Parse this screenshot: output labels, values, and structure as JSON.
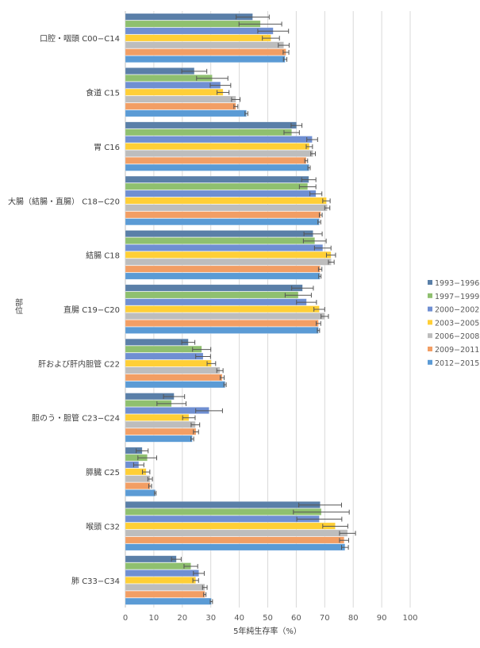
{
  "chart_data": {
    "type": "bar",
    "orientation": "horizontal",
    "xlabel": "5年純生存率（%）",
    "ylabel": "部位",
    "xlim": [
      0,
      100
    ],
    "xticks": [
      0,
      10,
      20,
      30,
      40,
      50,
      60,
      70,
      80,
      90,
      100
    ],
    "grid": "vertical",
    "legend": "right",
    "categories": [
      "口腔・咽頭 C00−C14",
      "食道 C15",
      "胃 C16",
      "大腸（結腸・直腸） C18−C20",
      "結腸 C18",
      "直腸 C19−C20",
      "肝および肝内胆管 C22",
      "胆のう・胆管 C23−C24",
      "膵臓 C25",
      "喉頭 C32",
      "肺 C33−C34"
    ],
    "series": [
      {
        "name": "1993−1996",
        "color": "#5a7fa8",
        "values": [
          44.7,
          24.2,
          60.1,
          64.4,
          65.9,
          62.2,
          22.1,
          17.1,
          5.9,
          68.4,
          17.9
        ],
        "errors": [
          5.8,
          4.4,
          1.9,
          2.5,
          3.2,
          3.8,
          2.3,
          3.7,
          2.1,
          7.5,
          1.7
        ]
      },
      {
        "name": "1997−1999",
        "color": "#8fc06f",
        "values": [
          47.4,
          30.5,
          58.4,
          64.0,
          66.5,
          60.7,
          26.8,
          16.2,
          7.7,
          68.8,
          23.0
        ],
        "errors": [
          7.5,
          5.5,
          2.7,
          2.9,
          4.0,
          4.6,
          3.2,
          5.1,
          3.3,
          9.8,
          2.4
        ]
      },
      {
        "name": "2000−2002",
        "color": "#6f8fd2",
        "values": [
          51.9,
          33.4,
          65.6,
          66.9,
          69.3,
          63.6,
          27.3,
          29.4,
          4.7,
          68.1,
          25.8
        ],
        "errors": [
          5.4,
          3.6,
          1.9,
          2.1,
          2.9,
          3.5,
          2.6,
          4.7,
          1.8,
          7.9,
          1.9
        ]
      },
      {
        "name": "2003−2005",
        "color": "#ffcf36",
        "values": [
          51.1,
          34.3,
          64.6,
          70.6,
          72.2,
          68.1,
          30.2,
          22.3,
          7.3,
          73.7,
          24.7
        ],
        "errors": [
          3.0,
          2.1,
          1.1,
          1.3,
          1.6,
          1.9,
          1.5,
          2.2,
          1.3,
          4.4,
          1.0
        ]
      },
      {
        "name": "2006−2008",
        "color": "#bdbdbd",
        "values": [
          55.6,
          38.8,
          65.9,
          70.9,
          72.3,
          70.0,
          33.2,
          24.6,
          8.7,
          78.0,
          27.9
        ],
        "errors": [
          1.9,
          1.5,
          0.8,
          0.9,
          1.0,
          1.3,
          1.1,
          1.5,
          0.8,
          2.8,
          0.8
        ]
      },
      {
        "name": "2009−2011",
        "color": "#f29e64",
        "values": [
          56.4,
          38.8,
          63.5,
          68.6,
          68.4,
          67.8,
          34.0,
          24.8,
          8.7,
          76.8,
          27.9
        ],
        "errors": [
          1.0,
          0.7,
          0.5,
          0.5,
          0.6,
          0.8,
          0.7,
          0.9,
          0.5,
          1.6,
          0.4
        ]
      },
      {
        "name": "2012−2015",
        "color": "#5b9bd5",
        "values": [
          56.1,
          42.5,
          64.5,
          68.1,
          68.3,
          67.8,
          35.0,
          23.5,
          10.5,
          77.1,
          30.2
        ],
        "errors": [
          0.6,
          0.5,
          0.4,
          0.5,
          0.4,
          0.4,
          0.4,
          0.5,
          0.3,
          1.2,
          0.4
        ]
      }
    ]
  }
}
